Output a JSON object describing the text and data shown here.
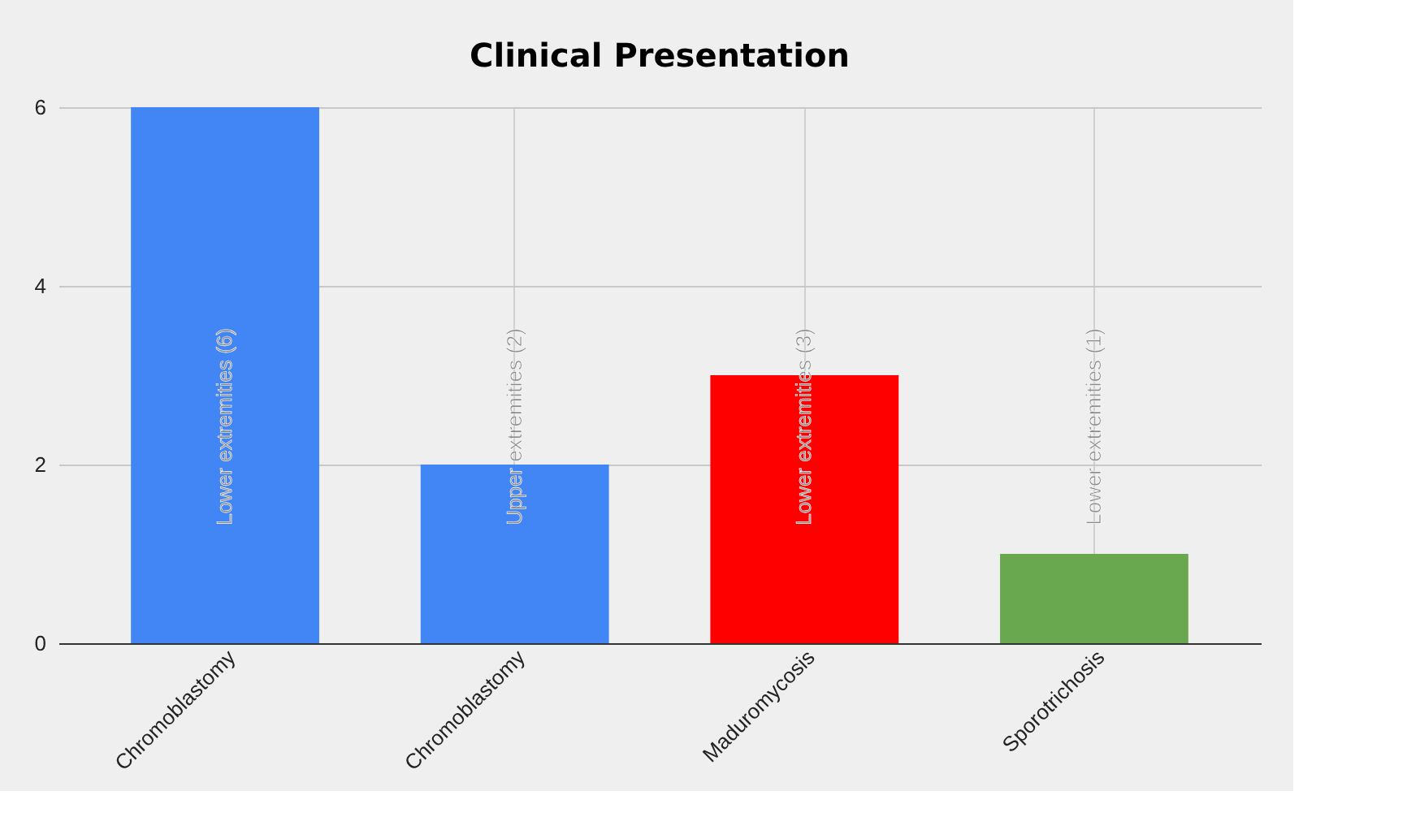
{
  "chart_data": {
    "type": "bar",
    "title": "Clinical Presentation",
    "categories": [
      "Chromoblastomy",
      "Chromoblastomy",
      "Maduromycosis",
      "Sporotrichosis"
    ],
    "values": [
      6,
      2,
      3,
      1
    ],
    "colors": [
      "#4285f4",
      "#4285f4",
      "#ff0000",
      "#6aa84f"
    ],
    "value_labels": [
      "Lower extremities (6)",
      "Upper extremities (2)",
      "Lower extremities (3)",
      "Lower extremities (1)"
    ],
    "ylim": [
      0,
      6
    ],
    "yticks": [
      0,
      2,
      4,
      6
    ],
    "grid": true
  }
}
